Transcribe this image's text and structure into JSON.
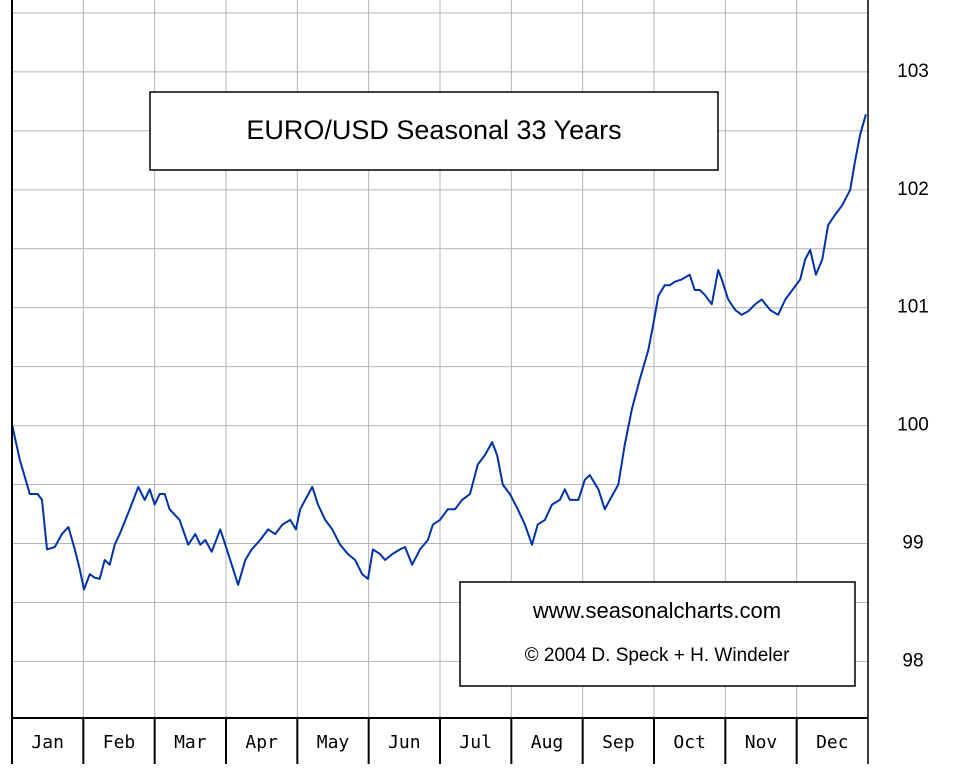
{
  "chart_data": {
    "type": "line",
    "title": "EURO/USD Seasonal 33 Years",
    "annotations": [
      "www.seasonalcharts.com",
      "© 2004 D. Speck + H. Windeler"
    ],
    "categories": [
      "Jan",
      "Feb",
      "Mar",
      "Apr",
      "May",
      "Jun",
      "Jul",
      "Aug",
      "Sep",
      "Oct",
      "Nov",
      "Dec"
    ],
    "xlim": [
      0,
      12
    ],
    "ylim": [
      97.52,
      103.61
    ],
    "yticks": [
      98,
      99,
      100,
      101,
      102,
      103
    ],
    "grid": true,
    "series": [
      {
        "color": "#0033aa",
        "x": [
          0,
          0.11,
          0.25,
          0.36,
          0.42,
          0.49,
          0.6,
          0.7,
          0.79,
          0.88,
          0.95,
          1.01,
          1.09,
          1.16,
          1.23,
          1.3,
          1.37,
          1.44,
          1.51,
          1.65,
          1.77,
          1.86,
          1.93,
          2.0,
          2.07,
          2.14,
          2.21,
          2.35,
          2.47,
          2.57,
          2.64,
          2.71,
          2.8,
          2.92,
          2.99,
          3.08,
          3.17,
          3.27,
          3.36,
          3.48,
          3.59,
          3.69,
          3.79,
          3.9,
          3.98,
          4.04,
          4.11,
          4.21,
          4.29,
          4.39,
          4.49,
          4.6,
          4.71,
          4.81,
          4.91,
          4.99,
          5.06,
          5.16,
          5.23,
          5.33,
          5.44,
          5.51,
          5.61,
          5.72,
          5.83,
          5.9,
          6.0,
          6.11,
          6.21,
          6.31,
          6.42,
          6.53,
          6.63,
          6.73,
          6.8,
          6.88,
          6.98,
          7.09,
          7.19,
          7.29,
          7.37,
          7.47,
          7.57,
          7.68,
          7.75,
          7.82,
          7.94,
          8.03,
          8.1,
          8.22,
          8.31,
          8.38,
          8.5,
          8.59,
          8.69,
          8.8,
          8.92,
          8.99,
          9.06,
          9.15,
          9.22,
          9.29,
          9.39,
          9.5,
          9.57,
          9.64,
          9.71,
          9.81,
          9.9,
          9.95,
          10.04,
          10.14,
          10.23,
          10.32,
          10.42,
          10.51,
          10.63,
          10.74,
          10.84,
          10.94,
          11.05,
          11.12,
          11.19,
          11.27,
          11.36,
          11.44,
          11.54,
          11.64,
          11.75,
          11.82,
          11.89,
          11.97
        ],
        "values": [
          100.01,
          99.71,
          99.42,
          99.42,
          99.37,
          98.95,
          98.97,
          99.08,
          99.14,
          98.95,
          98.78,
          98.61,
          98.74,
          98.71,
          98.7,
          98.86,
          98.82,
          98.99,
          99.08,
          99.29,
          99.48,
          99.37,
          99.46,
          99.33,
          99.42,
          99.42,
          99.29,
          99.2,
          98.99,
          99.08,
          98.99,
          99.03,
          98.93,
          99.12,
          98.99,
          98.82,
          98.65,
          98.86,
          98.95,
          99.03,
          99.12,
          99.08,
          99.16,
          99.2,
          99.12,
          99.29,
          99.37,
          99.48,
          99.33,
          99.2,
          99.12,
          98.99,
          98.91,
          98.86,
          98.74,
          98.7,
          98.95,
          98.91,
          98.86,
          98.91,
          98.95,
          98.97,
          98.82,
          98.95,
          99.03,
          99.16,
          99.2,
          99.29,
          99.29,
          99.37,
          99.42,
          99.67,
          99.75,
          99.86,
          99.75,
          99.5,
          99.42,
          99.29,
          99.16,
          98.99,
          99.16,
          99.2,
          99.33,
          99.37,
          99.46,
          99.37,
          99.37,
          99.54,
          99.58,
          99.46,
          99.29,
          99.37,
          99.5,
          99.84,
          100.14,
          100.39,
          100.64,
          100.86,
          101.1,
          101.19,
          101.19,
          101.22,
          101.24,
          101.28,
          101.15,
          101.15,
          101.11,
          101.03,
          101.32,
          101.24,
          101.07,
          100.98,
          100.94,
          100.97,
          101.03,
          101.07,
          100.98,
          100.94,
          101.07,
          101.15,
          101.24,
          101.41,
          101.49,
          101.28,
          101.41,
          101.7,
          101.79,
          101.87,
          102.0,
          102.25,
          102.47,
          102.64
        ]
      }
    ]
  }
}
